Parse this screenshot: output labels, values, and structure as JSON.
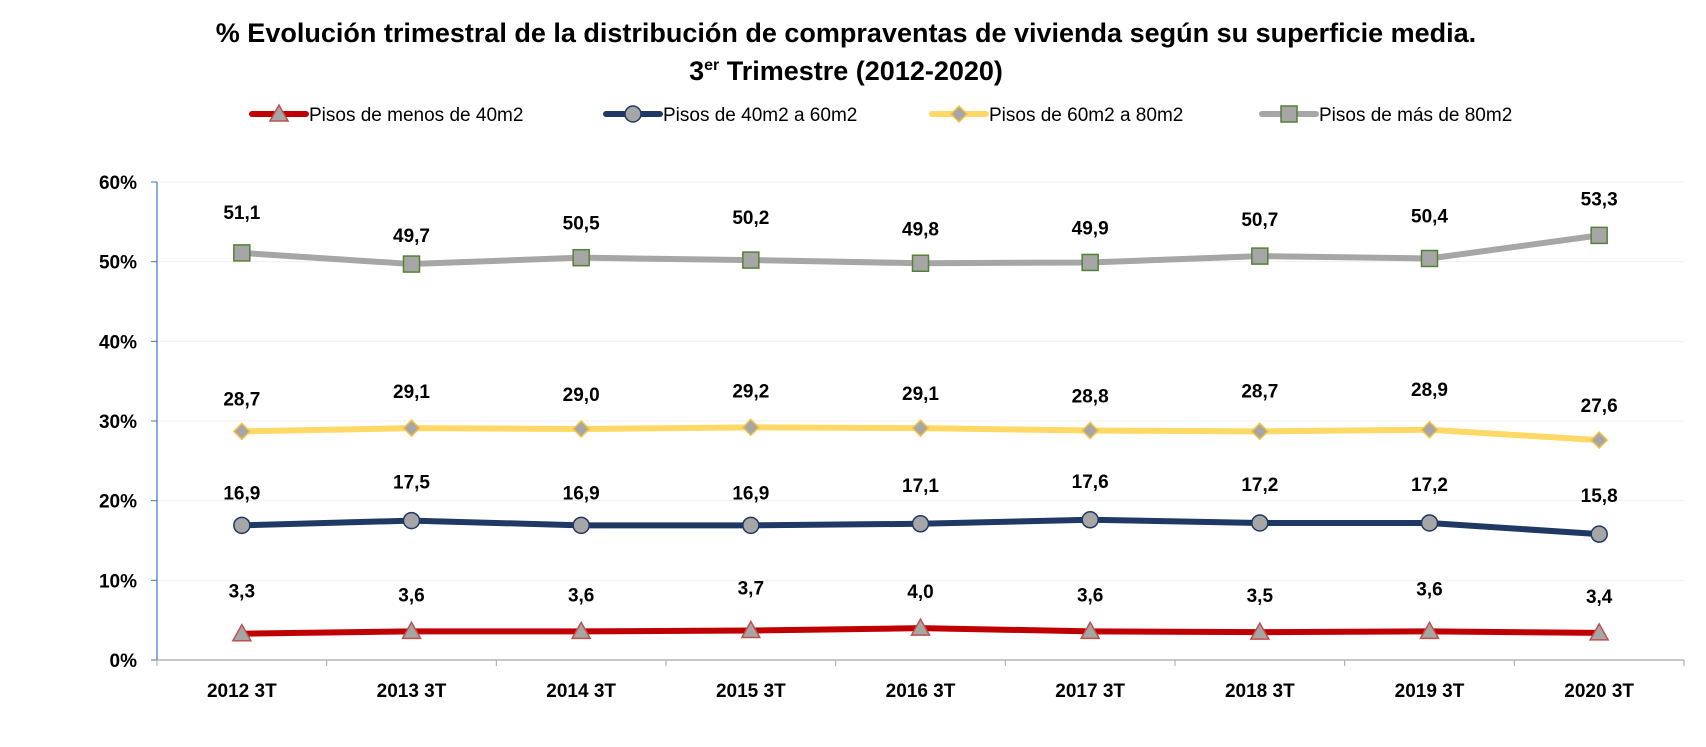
{
  "chart_data": {
    "type": "line",
    "title_line1": "% Evolución trimestral de la distribución de compraventas de vivienda según su superficie media.",
    "title_line2_prefix": "3",
    "title_line2_sup": "er",
    "title_line2_suffix": " Trimestre (2012-2020)",
    "categories": [
      "2012 3T",
      "2013 3T",
      "2014 3T",
      "2015 3T",
      "2016 3T",
      "2017 3T",
      "2018 3T",
      "2019 3T",
      "2020 3T"
    ],
    "ylim": [
      0,
      60
    ],
    "yticks": [
      0,
      10,
      20,
      30,
      40,
      50,
      60
    ],
    "ytick_labels": [
      "0%",
      "10%",
      "20%",
      "30%",
      "40%",
      "50%",
      "60%"
    ],
    "xlabel": "",
    "ylabel": "",
    "legend_position": "top",
    "series": [
      {
        "name": "Pisos de menos de 40m2",
        "values": [
          3.3,
          3.6,
          3.6,
          3.7,
          4.0,
          3.6,
          3.5,
          3.6,
          3.4
        ],
        "labels": [
          "3,3",
          "3,6",
          "3,6",
          "3,7",
          "4,0",
          "3,6",
          "3,5",
          "3,6",
          "3,4"
        ],
        "color": "#C00000",
        "marker": "triangle",
        "marker_fill": "#A6A6A6",
        "marker_stroke": "#C0504D"
      },
      {
        "name": "Pisos de 40m2 a 60m2",
        "values": [
          16.9,
          17.5,
          16.9,
          16.9,
          17.1,
          17.6,
          17.2,
          17.2,
          15.8
        ],
        "labels": [
          "16,9",
          "17,5",
          "16,9",
          "16,9",
          "17,1",
          "17,6",
          "17,2",
          "17,2",
          "15,8"
        ],
        "color": "#1F3864",
        "marker": "circle",
        "marker_fill": "#A6A6A6",
        "marker_stroke": "#1F3864"
      },
      {
        "name": "Pisos de 60m2 a 80m2",
        "values": [
          28.7,
          29.1,
          29.0,
          29.2,
          29.1,
          28.8,
          28.7,
          28.9,
          27.6
        ],
        "labels": [
          "28,7",
          "29,1",
          "29,0",
          "29,2",
          "29,1",
          "28,8",
          "28,7",
          "28,9",
          "27,6"
        ],
        "color": "#FFD966",
        "marker": "diamond",
        "marker_fill": "#A6A6A6",
        "marker_stroke": "#F5C242"
      },
      {
        "name": "Pisos de más de 80m2",
        "values": [
          51.1,
          49.7,
          50.5,
          50.2,
          49.8,
          49.9,
          50.7,
          50.4,
          53.3
        ],
        "labels": [
          "51,1",
          "49,7",
          "50,5",
          "50,2",
          "49,8",
          "49,9",
          "50,7",
          "50,4",
          "53,3"
        ],
        "color": "#A6A6A6",
        "marker": "square",
        "marker_fill": "#A6A6A6",
        "marker_stroke": "#548235"
      }
    ]
  }
}
